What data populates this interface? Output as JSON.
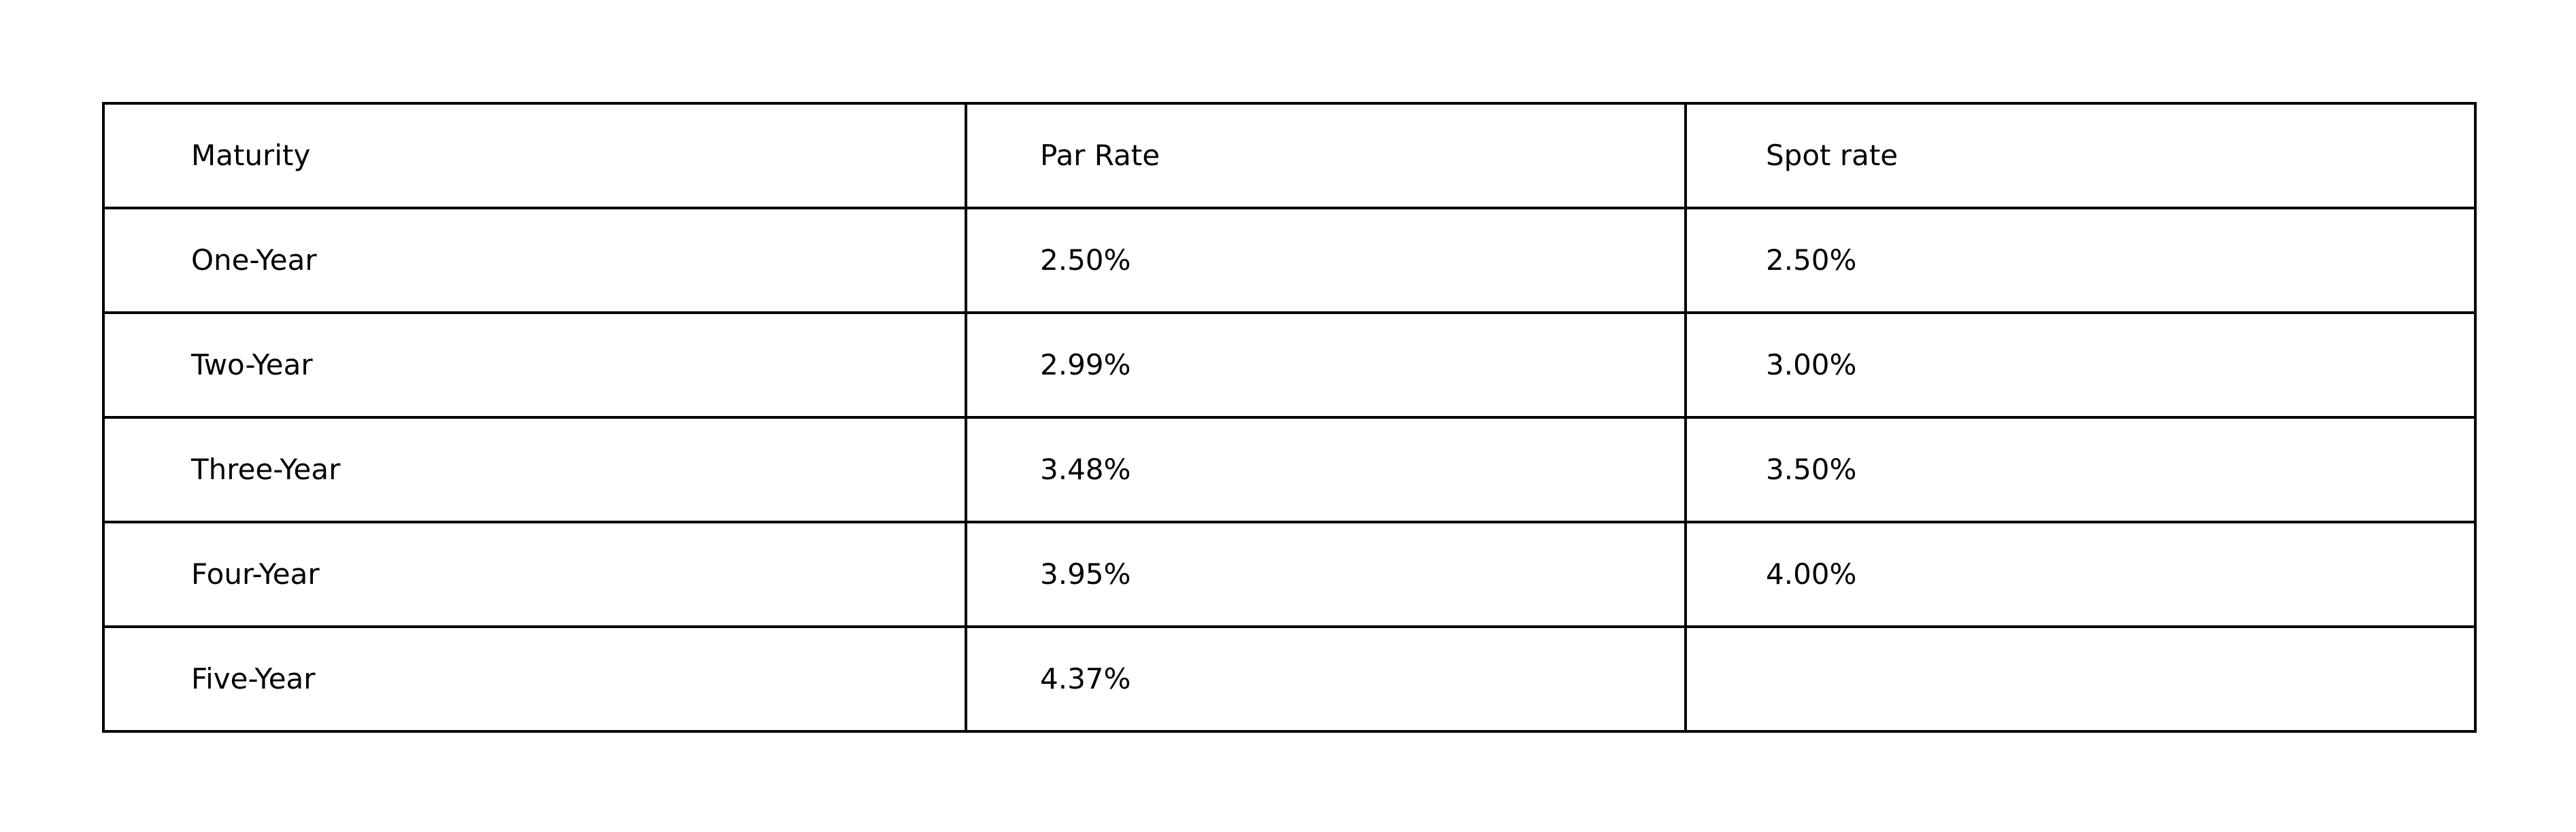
{
  "table": {
    "headers": [
      "Maturity",
      "Par Rate",
      "Spot rate"
    ],
    "rows": [
      [
        "One-Year",
        "2.50%",
        "2.50%"
      ],
      [
        "Two-Year",
        "2.99%",
        "3.00%"
      ],
      [
        "Three-Year",
        "3.48%",
        "3.50%"
      ],
      [
        "Four-Year",
        "3.95%",
        "4.00%"
      ],
      [
        "Five-Year",
        "4.37%",
        ""
      ]
    ]
  }
}
